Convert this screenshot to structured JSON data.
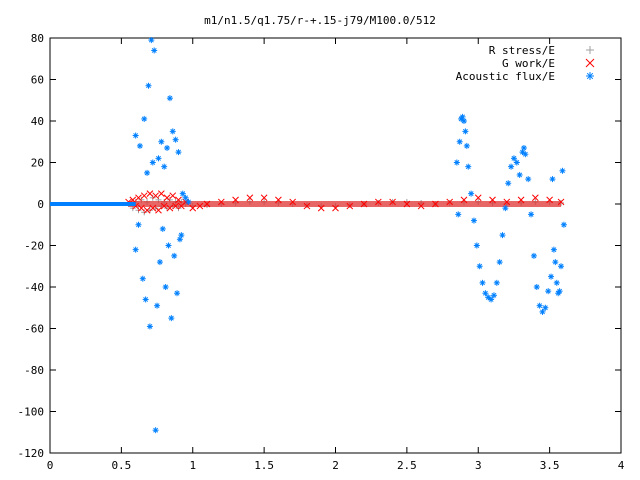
{
  "chart_data": {
    "type": "scatter",
    "title": "m1/n1.5/q1.75/r-+.15-j79/M100.0/512",
    "xlabel": "",
    "ylabel": "",
    "xlim": [
      0,
      4
    ],
    "ylim": [
      -120,
      80
    ],
    "x_ticks": [
      0,
      0.5,
      1,
      1.5,
      2,
      2.5,
      3,
      3.5,
      4
    ],
    "x_tick_labels": [
      "0",
      "0.5",
      "1",
      "1.5",
      "2",
      "2.5",
      "3",
      "3.5",
      "4"
    ],
    "y_ticks": [
      -120,
      -100,
      -80,
      -60,
      -40,
      -20,
      0,
      20,
      40,
      60,
      80
    ],
    "y_tick_labels": [
      "-120",
      "-100",
      "-80",
      "-60",
      "-40",
      "-20",
      "0",
      "20",
      "40",
      "60",
      "80"
    ],
    "grid": false,
    "legend_position": "top-right",
    "series": [
      {
        "name": "R stress/E",
        "marker": "plus",
        "color": "#a0a0a0",
        "points": [
          [
            0.55,
            0
          ],
          [
            0.58,
            -2
          ],
          [
            0.6,
            1
          ],
          [
            0.62,
            -3
          ],
          [
            0.64,
            2
          ],
          [
            0.66,
            -4
          ],
          [
            0.68,
            1
          ],
          [
            0.7,
            -3
          ],
          [
            0.72,
            3
          ],
          [
            0.74,
            -2
          ],
          [
            0.76,
            2
          ],
          [
            0.78,
            -1
          ],
          [
            0.8,
            1
          ],
          [
            0.82,
            -2
          ],
          [
            0.84,
            2
          ],
          [
            0.86,
            -1
          ],
          [
            0.88,
            1
          ],
          [
            0.9,
            -2
          ],
          [
            0.92,
            1
          ],
          [
            0.95,
            0
          ],
          [
            1.0,
            -1
          ],
          [
            1.1,
            -0.5
          ],
          [
            1.2,
            0
          ],
          [
            1.3,
            0.5
          ],
          [
            1.4,
            1
          ],
          [
            1.5,
            1
          ],
          [
            1.6,
            0.5
          ],
          [
            1.7,
            0
          ],
          [
            1.8,
            -0.5
          ],
          [
            1.9,
            -1
          ],
          [
            2.0,
            -1
          ],
          [
            2.1,
            -0.5
          ],
          [
            2.2,
            0
          ],
          [
            2.3,
            0.5
          ],
          [
            2.4,
            1
          ],
          [
            2.5,
            1
          ],
          [
            2.6,
            0.5
          ],
          [
            2.7,
            0
          ],
          [
            2.8,
            0.5
          ],
          [
            2.9,
            1
          ],
          [
            3.0,
            1
          ],
          [
            3.1,
            0.5
          ],
          [
            3.2,
            0
          ],
          [
            3.3,
            0.5
          ],
          [
            3.4,
            1
          ],
          [
            3.5,
            1
          ],
          [
            3.58,
            0.5
          ]
        ]
      },
      {
        "name": "G work/E",
        "marker": "cross",
        "color": "#ff0000",
        "points": [
          [
            0.55,
            1
          ],
          [
            0.58,
            2
          ],
          [
            0.6,
            -1
          ],
          [
            0.62,
            3
          ],
          [
            0.64,
            -2
          ],
          [
            0.66,
            4
          ],
          [
            0.68,
            -3
          ],
          [
            0.7,
            5
          ],
          [
            0.72,
            -2
          ],
          [
            0.74,
            4
          ],
          [
            0.76,
            -3
          ],
          [
            0.78,
            5
          ],
          [
            0.8,
            -1
          ],
          [
            0.82,
            3
          ],
          [
            0.84,
            -2
          ],
          [
            0.86,
            4
          ],
          [
            0.88,
            -1
          ],
          [
            0.9,
            2
          ],
          [
            0.92,
            -1
          ],
          [
            0.95,
            1
          ],
          [
            1.0,
            -2
          ],
          [
            1.05,
            -1
          ],
          [
            1.1,
            0
          ],
          [
            1.2,
            1
          ],
          [
            1.3,
            2
          ],
          [
            1.4,
            3
          ],
          [
            1.5,
            3
          ],
          [
            1.6,
            2
          ],
          [
            1.7,
            1
          ],
          [
            1.8,
            -1
          ],
          [
            1.9,
            -2
          ],
          [
            2.0,
            -2
          ],
          [
            2.1,
            -1
          ],
          [
            2.2,
            0
          ],
          [
            2.3,
            1
          ],
          [
            2.4,
            1
          ],
          [
            2.5,
            0
          ],
          [
            2.6,
            -1
          ],
          [
            2.7,
            0
          ],
          [
            2.8,
            1
          ],
          [
            2.9,
            2
          ],
          [
            3.0,
            3
          ],
          [
            3.1,
            2
          ],
          [
            3.2,
            1
          ],
          [
            3.3,
            2
          ],
          [
            3.4,
            3
          ],
          [
            3.5,
            2
          ],
          [
            3.58,
            1
          ]
        ]
      },
      {
        "name": "Acoustic flux/E",
        "marker": "star",
        "color": "#0080ff",
        "points": [
          [
            0.6,
            -22
          ],
          [
            0.6,
            33
          ],
          [
            0.62,
            -10
          ],
          [
            0.63,
            28
          ],
          [
            0.65,
            -36
          ],
          [
            0.66,
            41
          ],
          [
            0.67,
            -46
          ],
          [
            0.68,
            15
          ],
          [
            0.69,
            57
          ],
          [
            0.7,
            -59
          ],
          [
            0.71,
            79
          ],
          [
            0.72,
            20
          ],
          [
            0.73,
            74
          ],
          [
            0.74,
            -109
          ],
          [
            0.75,
            -49
          ],
          [
            0.76,
            22
          ],
          [
            0.77,
            -28
          ],
          [
            0.78,
            30
          ],
          [
            0.79,
            -12
          ],
          [
            0.8,
            18
          ],
          [
            0.81,
            -40
          ],
          [
            0.82,
            27
          ],
          [
            0.83,
            -20
          ],
          [
            0.84,
            51
          ],
          [
            0.85,
            -55
          ],
          [
            0.86,
            35
          ],
          [
            0.87,
            -25
          ],
          [
            0.88,
            31
          ],
          [
            0.89,
            -43
          ],
          [
            0.9,
            25
          ],
          [
            0.91,
            -17
          ],
          [
            0.92,
            -15
          ],
          [
            0.93,
            5
          ],
          [
            0.95,
            3
          ],
          [
            0.97,
            1
          ],
          [
            2.85,
            20
          ],
          [
            2.86,
            -5
          ],
          [
            2.87,
            30
          ],
          [
            2.88,
            41
          ],
          [
            2.89,
            42
          ],
          [
            2.9,
            40
          ],
          [
            2.91,
            35
          ],
          [
            2.92,
            28
          ],
          [
            2.93,
            18
          ],
          [
            2.95,
            5
          ],
          [
            2.97,
            -8
          ],
          [
            2.99,
            -20
          ],
          [
            3.01,
            -30
          ],
          [
            3.03,
            -38
          ],
          [
            3.05,
            -43
          ],
          [
            3.07,
            -45
          ],
          [
            3.09,
            -46
          ],
          [
            3.11,
            -44
          ],
          [
            3.13,
            -38
          ],
          [
            3.15,
            -28
          ],
          [
            3.17,
            -15
          ],
          [
            3.19,
            -2
          ],
          [
            3.21,
            10
          ],
          [
            3.23,
            18
          ],
          [
            3.25,
            22
          ],
          [
            3.27,
            20
          ],
          [
            3.29,
            14
          ],
          [
            3.31,
            25
          ],
          [
            3.32,
            27
          ],
          [
            3.33,
            24
          ],
          [
            3.35,
            12
          ],
          [
            3.37,
            -5
          ],
          [
            3.39,
            -25
          ],
          [
            3.41,
            -40
          ],
          [
            3.43,
            -49
          ],
          [
            3.45,
            -52
          ],
          [
            3.47,
            -50
          ],
          [
            3.49,
            -42
          ],
          [
            3.51,
            -35
          ],
          [
            3.52,
            12
          ],
          [
            3.53,
            -22
          ],
          [
            3.54,
            -28
          ],
          [
            3.55,
            -38
          ],
          [
            3.56,
            -43
          ],
          [
            3.57,
            -42
          ],
          [
            3.58,
            -30
          ],
          [
            3.59,
            16
          ],
          [
            3.6,
            -10
          ]
        ],
        "baseline_x_range": [
          0,
          0.6
        ]
      }
    ]
  }
}
